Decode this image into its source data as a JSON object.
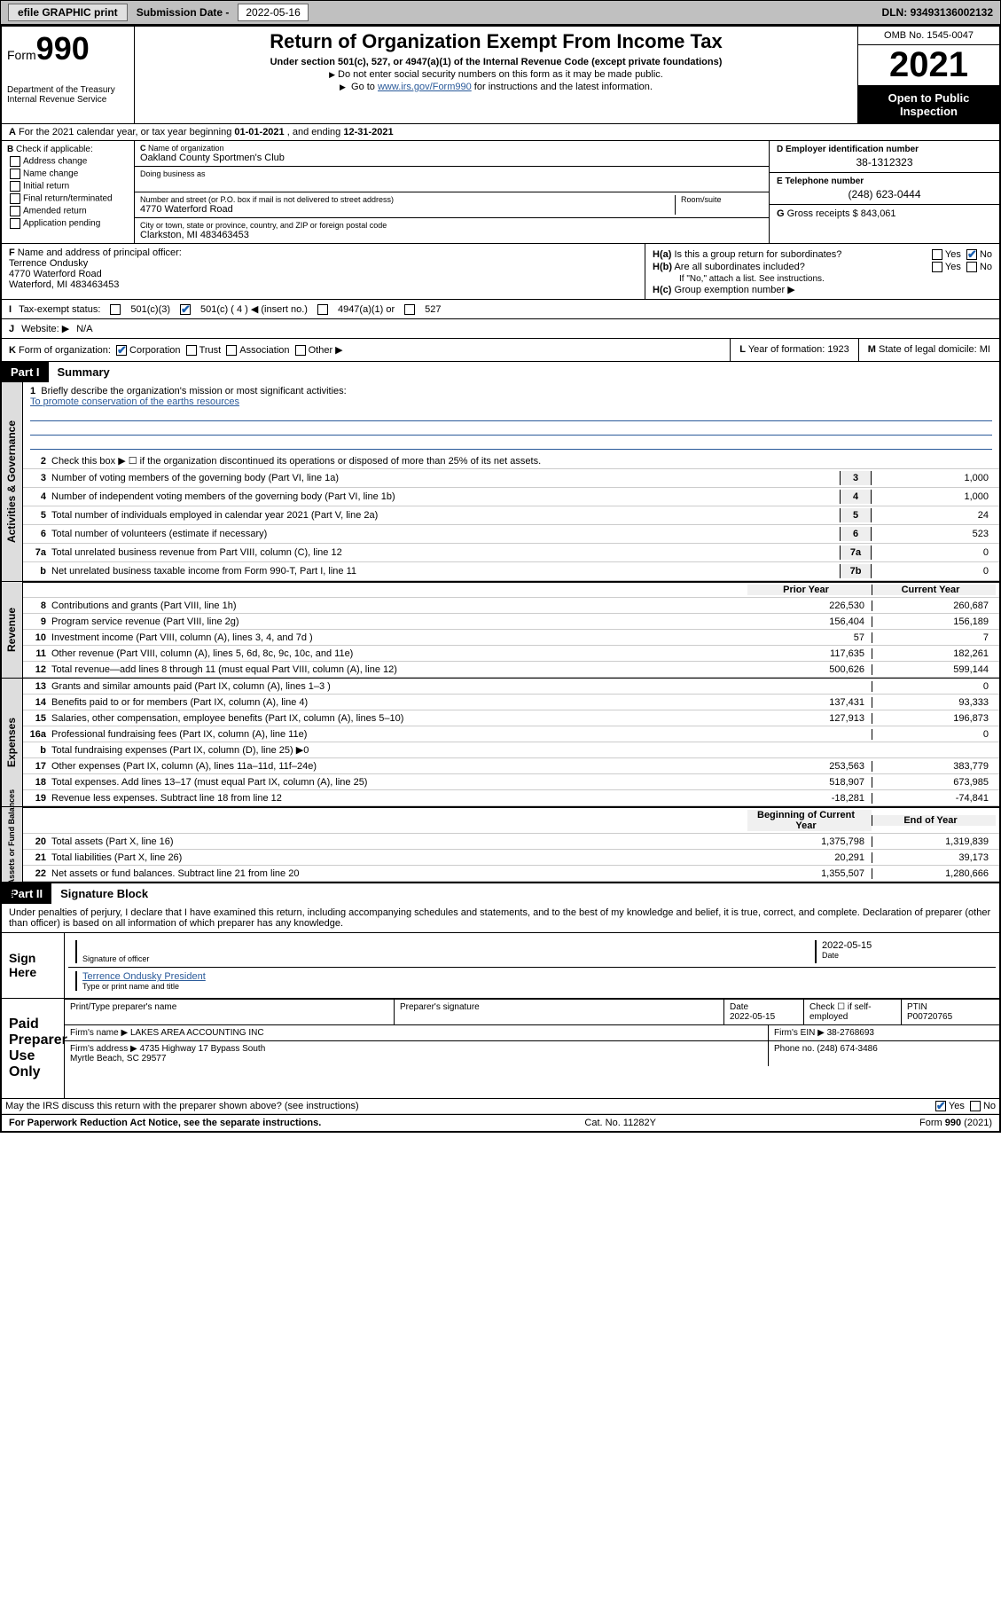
{
  "topbar": {
    "efile": "efile GRAPHIC print",
    "subdate_label": "Submission Date -",
    "subdate": "2022-05-16",
    "dln_label": "DLN:",
    "dln": "93493136002132"
  },
  "header": {
    "form_label": "Form",
    "form_num": "990",
    "dept": "Department of the Treasury\nInternal Revenue Service",
    "title": "Return of Organization Exempt From Income Tax",
    "sub1": "Under section 501(c), 527, or 4947(a)(1) of the Internal Revenue Code (except private foundations)",
    "sub2": "Do not enter social security numbers on this form as it may be made public.",
    "sub3_pre": "Go to ",
    "sub3_link": "www.irs.gov/Form990",
    "sub3_post": " for instructions and the latest information.",
    "omb": "OMB No. 1545-0047",
    "year": "2021",
    "open": "Open to Public Inspection"
  },
  "rowA": {
    "text_pre": "For the 2021 calendar year, or tax year beginning ",
    "begin": "01-01-2021",
    "mid": " , and ending ",
    "end": "12-31-2021"
  },
  "B": {
    "label": "Check if applicable:",
    "opts": [
      "Address change",
      "Name change",
      "Initial return",
      "Final return/terminated",
      "Amended return",
      "Application pending"
    ]
  },
  "C": {
    "name_label": "Name of organization",
    "name": "Oakland County Sportmen's Club",
    "dba_label": "Doing business as",
    "addr_label": "Number and street (or P.O. box if mail is not delivered to street address)",
    "room_label": "Room/suite",
    "addr": "4770 Waterford Road",
    "city_label": "City or town, state or province, country, and ZIP or foreign postal code",
    "city": "Clarkston, MI  483463453"
  },
  "D": {
    "label": "Employer identification number",
    "val": "38-1312323"
  },
  "E": {
    "label": "Telephone number",
    "val": "(248) 623-0444"
  },
  "G": {
    "label": "Gross receipts $",
    "val": "843,061"
  },
  "F": {
    "label": "Name and address of principal officer:",
    "name": "Terrence Ondusky",
    "addr": "4770 Waterford Road",
    "city": "Waterford, MI  483463453"
  },
  "H": {
    "a": "Is this a group return for subordinates?",
    "a_yes": "Yes",
    "a_no": "No",
    "b": "Are all subordinates included?",
    "b_note": "If \"No,\" attach a list. See instructions.",
    "c": "Group exemption number ▶"
  },
  "I": {
    "label": "Tax-exempt status:",
    "o1": "501(c)(3)",
    "o2": "501(c) ( 4 ) ◀ (insert no.)",
    "o3": "4947(a)(1) or",
    "o4": "527"
  },
  "J": {
    "label": "Website: ▶",
    "val": "N/A"
  },
  "K": {
    "label": "Form of organization:",
    "o1": "Corporation",
    "o2": "Trust",
    "o3": "Association",
    "o4": "Other ▶"
  },
  "L": {
    "label": "Year of formation:",
    "val": "1923"
  },
  "M": {
    "label": "State of legal domicile:",
    "val": "MI"
  },
  "part1": {
    "hdr": "Part I",
    "title": "Summary",
    "vtab1": "Activities & Governance",
    "vtab2": "Revenue",
    "vtab3": "Expenses",
    "vtab4": "Net Assets or Fund Balances",
    "line1_label": "Briefly describe the organization's mission or most significant activities:",
    "line1_val": "To promote conservation of the earths resources",
    "line2": "Check this box ▶ ☐  if the organization discontinued its operations or disposed of more than 25% of its net assets.",
    "rows_gov": [
      {
        "n": "3",
        "t": "Number of voting members of the governing body (Part VI, line 1a)",
        "b": "3",
        "v": "1,000"
      },
      {
        "n": "4",
        "t": "Number of independent voting members of the governing body (Part VI, line 1b)",
        "b": "4",
        "v": "1,000"
      },
      {
        "n": "5",
        "t": "Total number of individuals employed in calendar year 2021 (Part V, line 2a)",
        "b": "5",
        "v": "24"
      },
      {
        "n": "6",
        "t": "Total number of volunteers (estimate if necessary)",
        "b": "6",
        "v": "523"
      },
      {
        "n": "7a",
        "t": "Total unrelated business revenue from Part VIII, column (C), line 12",
        "b": "7a",
        "v": "0"
      },
      {
        "n": "b",
        "t": "Net unrelated business taxable income from Form 990-T, Part I, line 11",
        "b": "7b",
        "v": "0"
      }
    ],
    "col_prior": "Prior Year",
    "col_curr": "Current Year",
    "rows_rev": [
      {
        "n": "8",
        "t": "Contributions and grants (Part VIII, line 1h)",
        "p": "226,530",
        "c": "260,687"
      },
      {
        "n": "9",
        "t": "Program service revenue (Part VIII, line 2g)",
        "p": "156,404",
        "c": "156,189"
      },
      {
        "n": "10",
        "t": "Investment income (Part VIII, column (A), lines 3, 4, and 7d )",
        "p": "57",
        "c": "7"
      },
      {
        "n": "11",
        "t": "Other revenue (Part VIII, column (A), lines 5, 6d, 8c, 9c, 10c, and 11e)",
        "p": "117,635",
        "c": "182,261"
      },
      {
        "n": "12",
        "t": "Total revenue—add lines 8 through 11 (must equal Part VIII, column (A), line 12)",
        "p": "500,626",
        "c": "599,144"
      }
    ],
    "rows_exp": [
      {
        "n": "13",
        "t": "Grants and similar amounts paid (Part IX, column (A), lines 1–3 )",
        "p": "",
        "c": "0"
      },
      {
        "n": "14",
        "t": "Benefits paid to or for members (Part IX, column (A), line 4)",
        "p": "137,431",
        "c": "93,333"
      },
      {
        "n": "15",
        "t": "Salaries, other compensation, employee benefits (Part IX, column (A), lines 5–10)",
        "p": "127,913",
        "c": "196,873"
      },
      {
        "n": "16a",
        "t": "Professional fundraising fees (Part IX, column (A), line 11e)",
        "p": "",
        "c": "0"
      },
      {
        "n": "b",
        "t": "Total fundraising expenses (Part IX, column (D), line 25) ▶0",
        "p": "",
        "c": ""
      },
      {
        "n": "17",
        "t": "Other expenses (Part IX, column (A), lines 11a–11d, 11f–24e)",
        "p": "253,563",
        "c": "383,779"
      },
      {
        "n": "18",
        "t": "Total expenses. Add lines 13–17 (must equal Part IX, column (A), line 25)",
        "p": "518,907",
        "c": "673,985"
      },
      {
        "n": "19",
        "t": "Revenue less expenses. Subtract line 18 from line 12",
        "p": "-18,281",
        "c": "-74,841"
      }
    ],
    "col_begin": "Beginning of Current Year",
    "col_end": "End of Year",
    "rows_net": [
      {
        "n": "20",
        "t": "Total assets (Part X, line 16)",
        "p": "1,375,798",
        "c": "1,319,839"
      },
      {
        "n": "21",
        "t": "Total liabilities (Part X, line 26)",
        "p": "20,291",
        "c": "39,173"
      },
      {
        "n": "22",
        "t": "Net assets or fund balances. Subtract line 21 from line 20",
        "p": "1,355,507",
        "c": "1,280,666"
      }
    ]
  },
  "part2": {
    "hdr": "Part II",
    "title": "Signature Block",
    "penal": "Under penalties of perjury, I declare that I have examined this return, including accompanying schedules and statements, and to the best of my knowledge and belief, it is true, correct, and complete. Declaration of preparer (other than officer) is based on all information of which preparer has any knowledge.",
    "sign_here": "Sign Here",
    "sig_officer": "Signature of officer",
    "sig_date_label": "Date",
    "sig_date": "2022-05-15",
    "sig_name": "Terrence Ondusky  President",
    "sig_name_label": "Type or print name and title",
    "paid": "Paid Preparer Use Only",
    "prep_name_label": "Print/Type preparer's name",
    "prep_sig_label": "Preparer's signature",
    "prep_date_label": "Date",
    "prep_date": "2022-05-15",
    "prep_check": "Check ☐ if self-employed",
    "ptin_label": "PTIN",
    "ptin": "P00720765",
    "firm_name_label": "Firm's name    ▶",
    "firm_name": "LAKES AREA ACCOUNTING INC",
    "firm_ein_label": "Firm's EIN ▶",
    "firm_ein": "38-2768693",
    "firm_addr_label": "Firm's address ▶",
    "firm_addr": "4735 Highway 17 Bypass South",
    "firm_city": "Myrtle Beach, SC  29577",
    "firm_phone_label": "Phone no.",
    "firm_phone": "(248) 674-3486",
    "may_discuss": "May the IRS discuss this return with the preparer shown above? (see instructions)",
    "yes": "Yes",
    "no": "No"
  },
  "footer": {
    "left": "For Paperwork Reduction Act Notice, see the separate instructions.",
    "mid": "Cat. No. 11282Y",
    "right": "Form 990 (2021)"
  }
}
